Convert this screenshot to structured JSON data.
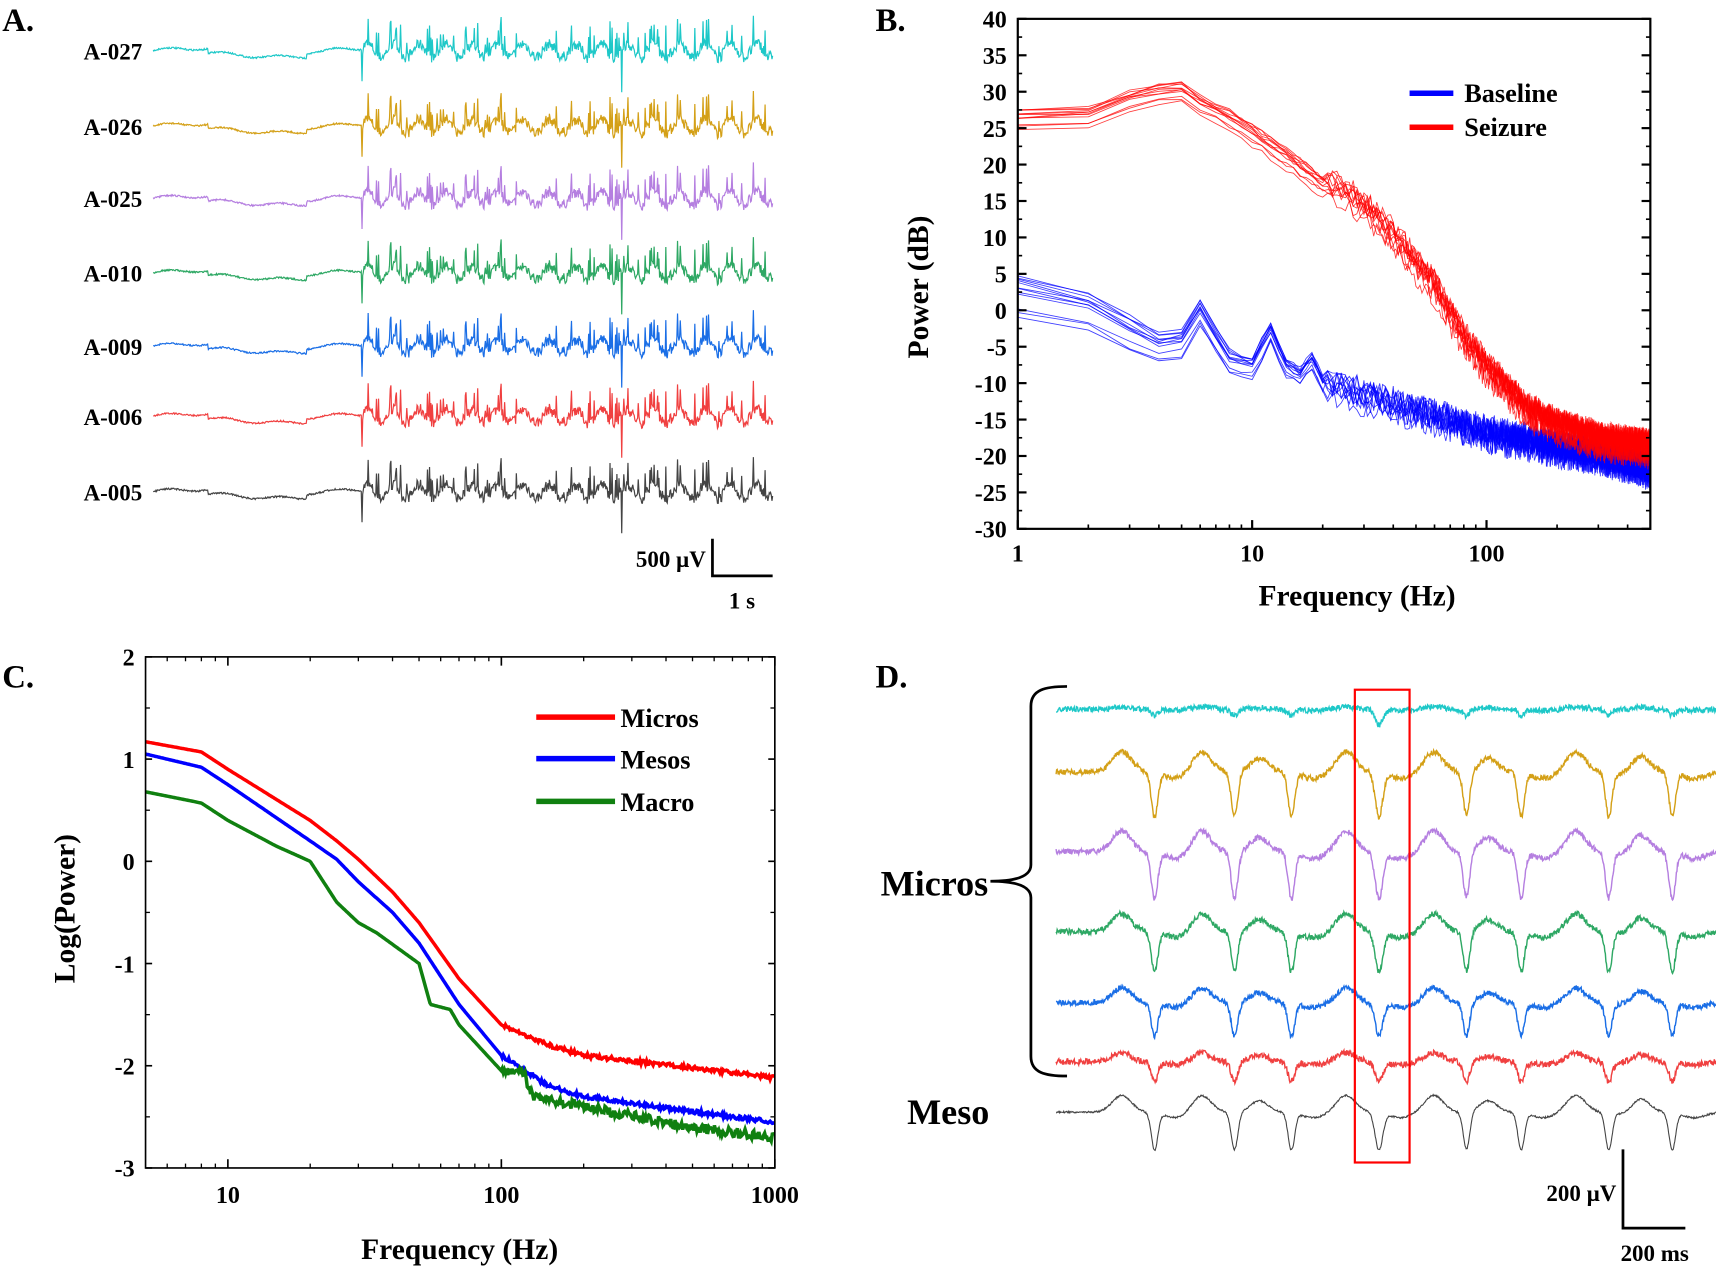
{
  "panel_labels": {
    "a": "A.",
    "b": "B.",
    "c": "C.",
    "d": "D."
  },
  "chart_data": [
    {
      "panel": "A",
      "type": "line",
      "channels": [
        "A-027",
        "A-026",
        "A-025",
        "A-010",
        "A-009",
        "A-006",
        "A-005"
      ],
      "colors": [
        "#1ec8c8",
        "#d4a017",
        "#b57fe0",
        "#2ea864",
        "#1a6ee6",
        "#f04040",
        "#444444"
      ],
      "scale_bar": {
        "voltage_label": "500 µV",
        "time_label": "1 s"
      }
    },
    {
      "panel": "B",
      "type": "line",
      "xlabel": "Frequency (Hz)",
      "ylabel": "Power (dB)",
      "xscale": "log",
      "xlim": [
        1,
        500
      ],
      "ylim": [
        -30,
        40
      ],
      "xticks": [
        "1",
        "10",
        "100"
      ],
      "yticks": [
        "40",
        "35",
        "30",
        "25",
        "20",
        "15",
        "10",
        "5",
        "0",
        "-5",
        "-10",
        "-15",
        "-20",
        "-25",
        "-30"
      ],
      "legend_position": "top-right",
      "series": [
        {
          "name": "Baseline",
          "color": "#0000ff",
          "x": [
            1,
            2,
            3,
            4,
            5,
            6,
            7,
            8,
            10,
            12,
            14,
            16,
            18,
            20,
            30,
            50,
            100,
            200,
            300,
            500
          ],
          "y": [
            2,
            0,
            -3,
            -5,
            -4.5,
            -0.5,
            -4,
            -7,
            -8,
            -3,
            -8,
            -9,
            -7,
            -10,
            -12,
            -14,
            -17,
            -19,
            -20,
            -22
          ]
        },
        {
          "name": "Seizure",
          "color": "#ff0000",
          "x": [
            1,
            2,
            3,
            4.5,
            5,
            6,
            8,
            10,
            15,
            20,
            25,
            30,
            40,
            60,
            80,
            100,
            150,
            200,
            300,
            500
          ],
          "y": [
            26,
            26.5,
            28.5,
            30,
            30,
            28,
            26,
            24,
            20,
            17,
            16,
            14,
            10,
            3,
            -4,
            -8,
            -14,
            -16,
            -18,
            -19
          ]
        }
      ]
    },
    {
      "panel": "C",
      "type": "line",
      "xlabel": "Frequency (Hz)",
      "ylabel": "Log(Power)",
      "xscale": "log",
      "xlim": [
        5,
        1000
      ],
      "ylim": [
        -3,
        2
      ],
      "xticks": [
        "10",
        "100",
        "1000"
      ],
      "yticks": [
        "2",
        "1",
        "0",
        "-1",
        "-2",
        "-3"
      ],
      "legend_position": "top-right",
      "series": [
        {
          "name": "Micros",
          "color": "#ff0000",
          "x": [
            5,
            8,
            10,
            20,
            25,
            30,
            40,
            50,
            70,
            100,
            150,
            200,
            500,
            1000
          ],
          "y": [
            1.17,
            1.07,
            0.9,
            0.4,
            0.2,
            0.02,
            -0.3,
            -0.6,
            -1.15,
            -1.6,
            -1.8,
            -1.9,
            -2.02,
            -2.12
          ]
        },
        {
          "name": "Mesos",
          "color": "#0000ff",
          "x": [
            5,
            8,
            10,
            20,
            25,
            30,
            40,
            50,
            70,
            100,
            150,
            200,
            500,
            1000
          ],
          "y": [
            1.05,
            0.92,
            0.75,
            0.2,
            0.02,
            -0.2,
            -0.5,
            -0.8,
            -1.4,
            -1.9,
            -2.2,
            -2.3,
            -2.45,
            -2.55
          ]
        },
        {
          "name": "Macro",
          "color": "#108010",
          "x": [
            5,
            8,
            10,
            15,
            20,
            25,
            30,
            35,
            50,
            55,
            65,
            70,
            100,
            120,
            130,
            200,
            500,
            1000
          ],
          "y": [
            0.68,
            0.57,
            0.4,
            0.15,
            0.0,
            -0.4,
            -0.6,
            -0.7,
            -1.0,
            -1.4,
            -1.45,
            -1.6,
            -2.05,
            -2.05,
            -2.3,
            -2.4,
            -2.6,
            -2.7
          ]
        }
      ]
    },
    {
      "panel": "D",
      "type": "line",
      "group_labels": {
        "micros": "Micros",
        "meso": "Meso"
      },
      "colors": [
        "#1ec8c8",
        "#d4a017",
        "#b57fe0",
        "#2ea864",
        "#1a6ee6",
        "#f04040",
        "#444444"
      ],
      "highlight_box_color": "#ff0000",
      "scale_bar": {
        "voltage_label": "200 µV",
        "time_label": "200 ms"
      }
    }
  ]
}
